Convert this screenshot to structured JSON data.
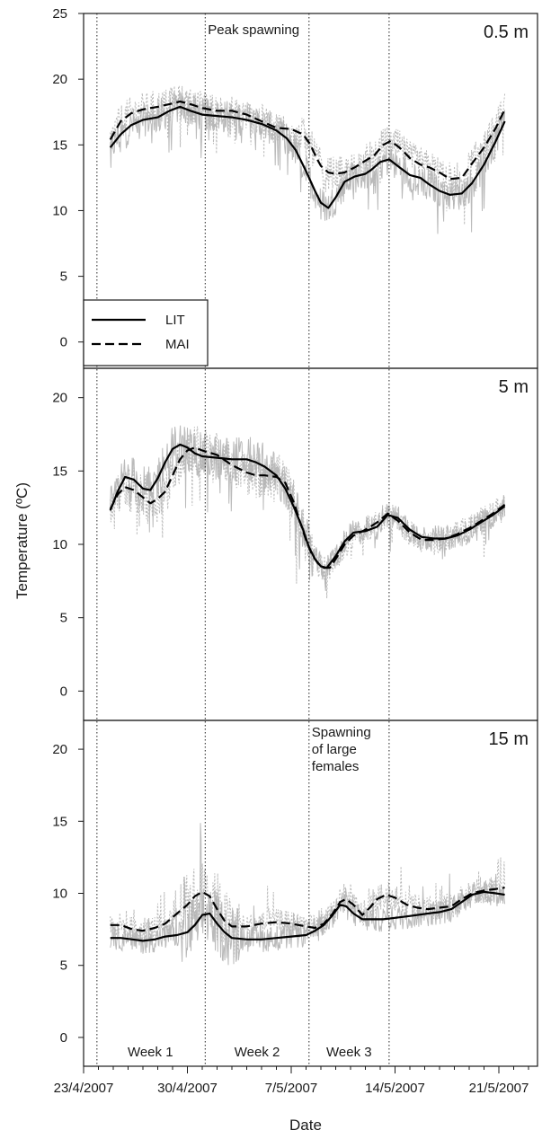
{
  "chart_data": {
    "type": "line",
    "ylabel": "Temperature (ºC)",
    "xlabel": "Date",
    "x_ticks": [
      "23/4/2007",
      "30/4/2007",
      "7/5/2007",
      "14/5/2007",
      "21/5/2007"
    ],
    "x_tick_days": [
      0,
      7,
      14,
      21,
      28
    ],
    "xlim_days": [
      0,
      30
    ],
    "x_start": "23/4/2007",
    "legend": {
      "position": "lower-left",
      "entries": [
        {
          "name": "LIT",
          "style": "solid"
        },
        {
          "name": "MAI",
          "style": "dashed"
        }
      ]
    },
    "colors": {
      "smooth": "#000000",
      "raw": "#b3b3b3",
      "frame": "#1a1a1a"
    },
    "event_lines_days": [
      0.9,
      8.2,
      15.2,
      20.6
    ],
    "period_labels": [
      {
        "text": "Week 1",
        "day": 4.5
      },
      {
        "text": "Week 2",
        "day": 11.7
      },
      {
        "text": "Week 3",
        "day": 17.9
      }
    ],
    "panels": [
      {
        "label": "0.5 m",
        "ylim": [
          -2,
          25
        ],
        "yticks": [
          0,
          5,
          10,
          15,
          20,
          25
        ],
        "annotation": {
          "lines": [
            "Peak spawning"
          ],
          "day": 8.2
        },
        "series": [
          {
            "name": "LIT",
            "style": "solid",
            "x": [
              1.8,
              2.5,
              3.2,
              4,
              5,
              5.8,
              6.5,
              7.2,
              8,
              9,
              10,
              11,
              12,
              13,
              13.7,
              14.3,
              15,
              15.6,
              16,
              16.5,
              17,
              17.6,
              18.3,
              19,
              19.4,
              20,
              20.6,
              21.3,
              22,
              22.7,
              23.3,
              24,
              24.7,
              25.5,
              26.2,
              27,
              27.8,
              28.4
            ],
            "y": [
              14.8,
              15.8,
              16.5,
              16.9,
              17.1,
              17.6,
              17.9,
              17.6,
              17.3,
              17.2,
              17.1,
              16.9,
              16.6,
              16.1,
              15.5,
              14.6,
              13.0,
              11.5,
              10.6,
              10.2,
              11.0,
              12.2,
              12.6,
              12.8,
              13.1,
              13.7,
              13.9,
              13.3,
              12.7,
              12.5,
              12.0,
              11.5,
              11.2,
              11.3,
              12.1,
              13.5,
              15.3,
              16.8
            ]
          },
          {
            "name": "MAI",
            "style": "dashed",
            "x": [
              1.8,
              2.5,
              3.2,
              4,
              5,
              5.8,
              6.5,
              7.2,
              8,
              9,
              10,
              11,
              12,
              13,
              14,
              14.8,
              15.3,
              15.7,
              16,
              16.5,
              17,
              17.6,
              18.3,
              19,
              19.6,
              20.2,
              20.7,
              21.3,
              22,
              22.7,
              23.3,
              24,
              24.7,
              25.5,
              26.2,
              27,
              27.8,
              28.4
            ],
            "y": [
              15.4,
              16.8,
              17.4,
              17.7,
              17.9,
              18.1,
              18.3,
              18.1,
              17.8,
              17.6,
              17.6,
              17.3,
              16.8,
              16.3,
              16.2,
              15.8,
              15.0,
              14.0,
              13.4,
              12.9,
              12.8,
              12.9,
              13.3,
              13.8,
              14.2,
              15.0,
              15.3,
              14.8,
              14.0,
              13.5,
              13.3,
              12.9,
              12.4,
              12.5,
              13.6,
              14.8,
              16.3,
              17.7
            ]
          }
        ]
      },
      {
        "label": "5 m",
        "ylim": [
          -2,
          22
        ],
        "yticks": [
          0,
          5,
          10,
          15,
          20
        ],
        "series": [
          {
            "name": "LIT",
            "style": "solid",
            "x": [
              1.8,
              2.3,
              2.8,
              3.4,
              4,
              4.5,
              5,
              5.5,
              6,
              6.5,
              7,
              7.5,
              8,
              9,
              10,
              11,
              11.6,
              12.2,
              13,
              13.6,
              14.2,
              14.8,
              15.2,
              15.6,
              16,
              16.4,
              17,
              17.6,
              18.2,
              19,
              19.8,
              20.5,
              21.2,
              22,
              22.8,
              23.6,
              24.4,
              25.2,
              26,
              26.8,
              27.6,
              28.4
            ],
            "y": [
              12.3,
              13.6,
              14.6,
              14.4,
              13.8,
              13.7,
              14.5,
              15.6,
              16.5,
              16.8,
              16.6,
              16.2,
              16.0,
              15.9,
              15.8,
              15.8,
              15.6,
              15.3,
              14.7,
              13.8,
              12.5,
              11.0,
              9.8,
              9.0,
              8.5,
              8.4,
              9.2,
              10.2,
              10.8,
              10.9,
              11.2,
              12.0,
              11.8,
              11.0,
              10.5,
              10.4,
              10.4,
              10.6,
              11.0,
              11.5,
              12.0,
              12.6
            ]
          },
          {
            "name": "MAI",
            "style": "dashed",
            "x": [
              1.8,
              2.3,
              2.8,
              3.4,
              4,
              4.5,
              5,
              5.5,
              6,
              6.5,
              7,
              7.5,
              8,
              9,
              10,
              11,
              11.6,
              12.2,
              13,
              13.6,
              14.2,
              14.6,
              15,
              15.4,
              15.8,
              16.2,
              16.6,
              17,
              17.6,
              18.2,
              19,
              19.8,
              20.5,
              21.2,
              22,
              22.8,
              23.6,
              24.4,
              25.2,
              26,
              26.8,
              27.6,
              28.4
            ],
            "y": [
              12.4,
              13.4,
              13.9,
              13.7,
              13.2,
              12.8,
              13.1,
              13.6,
              14.7,
              15.8,
              16.4,
              16.6,
              16.4,
              16.1,
              15.4,
              14.9,
              14.7,
              14.7,
              14.6,
              14.2,
              12.8,
              11.5,
              10.3,
              9.3,
              8.7,
              8.4,
              8.4,
              9.0,
              10.0,
              10.6,
              11.0,
              11.5,
              12.1,
              11.6,
              10.8,
              10.3,
              10.3,
              10.4,
              10.7,
              11.1,
              11.6,
              12.1,
              12.7
            ]
          }
        ]
      },
      {
        "label": "15 m",
        "ylim": [
          -2,
          22
        ],
        "yticks": [
          0,
          5,
          10,
          15,
          20
        ],
        "annotation": {
          "lines": [
            "Spawning",
            "of large",
            "females"
          ],
          "day": 15.2
        },
        "series": [
          {
            "name": "LIT",
            "style": "solid",
            "x": [
              1.8,
              2.5,
              3.3,
              4,
              4.8,
              5.5,
              6.3,
              7,
              7.5,
              8,
              8.5,
              9,
              9.5,
              10,
              11,
              12,
              13,
              14,
              15,
              15.6,
              16.2,
              16.8,
              17.3,
              17.7,
              18.2,
              18.8,
              19.5,
              20.2,
              21,
              21.8,
              22.5,
              23.2,
              24,
              24.8,
              25.5,
              26.2,
              27,
              27.8,
              28.4
            ],
            "y": [
              6.9,
              6.9,
              6.8,
              6.7,
              6.8,
              7.0,
              7.1,
              7.3,
              7.8,
              8.5,
              8.6,
              7.9,
              7.3,
              6.9,
              6.8,
              6.8,
              6.9,
              7.0,
              7.1,
              7.4,
              7.8,
              8.5,
              9.2,
              9.1,
              8.6,
              8.2,
              8.2,
              8.2,
              8.3,
              8.4,
              8.5,
              8.6,
              8.7,
              8.9,
              9.4,
              9.9,
              10.1,
              10.0,
              9.9
            ]
          },
          {
            "name": "MAI",
            "style": "dashed",
            "x": [
              1.8,
              2.5,
              3.3,
              4,
              4.8,
              5.5,
              6.3,
              7,
              7.5,
              8,
              8.5,
              9,
              9.5,
              10,
              11,
              12,
              13,
              14,
              15,
              15.6,
              16.2,
              16.8,
              17.3,
              17.7,
              18.2,
              18.8,
              19.3,
              19.8,
              20.4,
              21,
              21.8,
              22.5,
              23.2,
              24,
              24.8,
              25.5,
              26.2,
              27,
              27.8,
              28.4
            ],
            "y": [
              7.8,
              7.8,
              7.5,
              7.4,
              7.6,
              7.9,
              8.6,
              9.2,
              9.8,
              10.1,
              9.8,
              8.9,
              8.1,
              7.7,
              7.7,
              7.9,
              8.0,
              7.9,
              7.7,
              7.6,
              7.9,
              8.6,
              9.4,
              9.6,
              9.2,
              8.5,
              9.0,
              9.6,
              9.9,
              9.7,
              9.2,
              9.0,
              8.9,
              9.0,
              9.1,
              9.6,
              10.0,
              10.2,
              10.3,
              10.4
            ]
          }
        ]
      }
    ]
  }
}
